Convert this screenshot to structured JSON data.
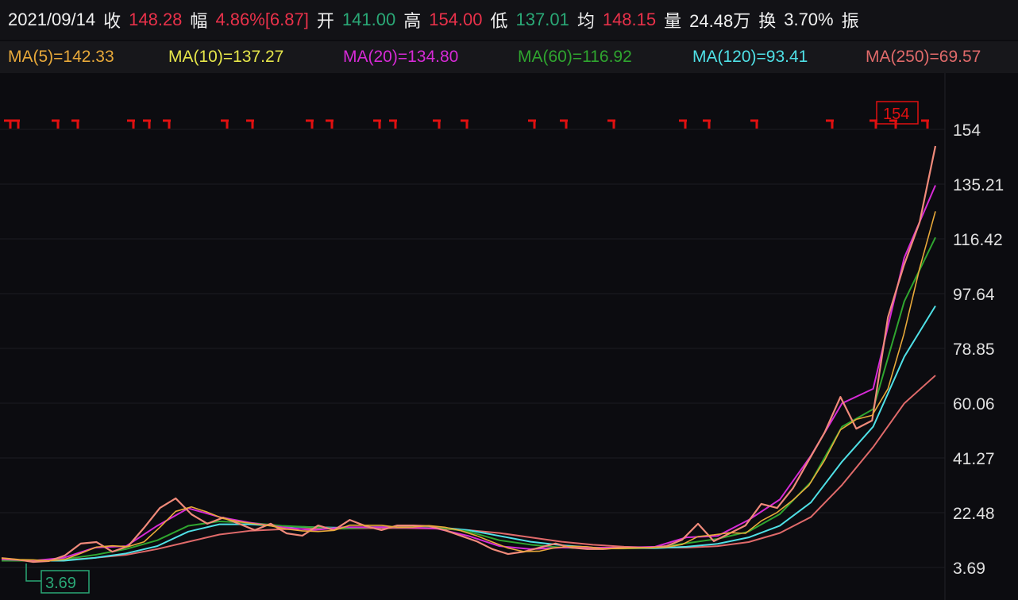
{
  "header": {
    "date": "2021/09/14",
    "close_label": "收",
    "close": "148.28",
    "change_label": "幅",
    "change": "4.86%[6.87]",
    "open_label": "开",
    "open": "141.00",
    "high_label": "高",
    "high": "154.00",
    "low_label": "低",
    "low": "137.01",
    "avg_label": "均",
    "avg": "148.15",
    "vol_label": "量",
    "vol": "24.48万",
    "turnover_label": "换",
    "turnover": "3.70%",
    "cut_label": "振"
  },
  "ma_legend": [
    {
      "text": "MA(5)=142.33",
      "color": "#e8a93a"
    },
    {
      "text": "MA(10)=137.27",
      "color": "#e6e64a"
    },
    {
      "text": "MA(20)=134.80",
      "color": "#d62ad6"
    },
    {
      "text": "MA(60)=116.92",
      "color": "#2fa52f"
    },
    {
      "text": "MA(120)=93.41",
      "color": "#4fe0e6"
    },
    {
      "text": "MA(250)=69.57",
      "color": "#e06a6a"
    }
  ],
  "chart_data": {
    "type": "line",
    "ylim": [
      3.69,
      154
    ],
    "yticks": [
      "154",
      "135.21",
      "116.42",
      "97.64",
      "78.85",
      "60.06",
      "41.27",
      "22.48",
      "3.69"
    ],
    "max_label": "154",
    "min_label": "3.69",
    "grid": true,
    "price": {
      "color": "#f08a7a",
      "values": [
        6.9,
        6.4,
        5.6,
        5.9,
        7.8,
        11.9,
        12.4,
        9.1,
        11.0,
        17.3,
        24.1,
        27.4,
        21.9,
        18.7,
        20.8,
        18.7,
        16.5,
        18.7,
        15.4,
        14.6,
        18.1,
        16.5,
        20.0,
        17.9,
        16.5,
        18.1,
        18.1,
        17.9,
        16.5,
        14.6,
        12.7,
        10.0,
        8.3,
        9.1,
        10.5,
        11.9,
        10.5,
        10.0,
        10.0,
        10.5,
        10.5,
        10.5,
        11.0,
        13.2,
        18.7,
        12.7,
        15.4,
        18.1,
        25.5,
        24.1,
        30.9,
        40.5,
        50.0,
        62.2,
        51.3,
        54.1,
        89.5,
        107.2,
        122.1,
        148.28
      ]
    },
    "series": [
      {
        "name": "MA(20)",
        "color": "#d62ad6",
        "values": [
          6.5,
          6,
          7,
          10.5,
          11,
          18,
          24,
          21,
          19,
          17.5,
          16.5,
          17.5,
          17.5,
          17.5,
          17,
          14.5,
          11,
          10,
          10.5,
          10.5,
          10.5,
          10.8,
          14,
          14.5,
          20,
          27,
          42,
          60,
          65,
          110,
          134.8
        ]
      },
      {
        "name": "MA(60)",
        "color": "#2fa52f",
        "values": [
          6,
          6,
          6.5,
          8,
          10,
          13,
          18,
          19.5,
          19,
          18,
          17.5,
          17,
          17.5,
          17.5,
          17.5,
          16,
          13,
          11.5,
          10.5,
          10.2,
          10.2,
          10.5,
          12,
          13.5,
          16,
          22,
          33,
          52,
          58,
          95,
          116.92
        ]
      },
      {
        "name": "MA(120)",
        "color": "#4fe0e6",
        "values": [
          6,
          6,
          6,
          7,
          8.5,
          11,
          16,
          18.5,
          18.5,
          17.8,
          17.5,
          17.3,
          17.5,
          17.5,
          17.5,
          16.5,
          14.5,
          12.5,
          11.3,
          10.5,
          10.3,
          10.3,
          10.8,
          11.8,
          14,
          18,
          26,
          40,
          52,
          76,
          93.41
        ]
      },
      {
        "name": "MA(250)",
        "color": "#e06a6a",
        "values": [
          6,
          6,
          6.2,
          7,
          8,
          10,
          12.5,
          15,
          16.3,
          16.8,
          17,
          17,
          17.2,
          17.2,
          17,
          16.5,
          15.5,
          14,
          12.5,
          11.5,
          10.8,
          10.5,
          10.5,
          11,
          12.4,
          15.5,
          21,
          32,
          45,
          60,
          69.57
        ]
      }
    ]
  }
}
